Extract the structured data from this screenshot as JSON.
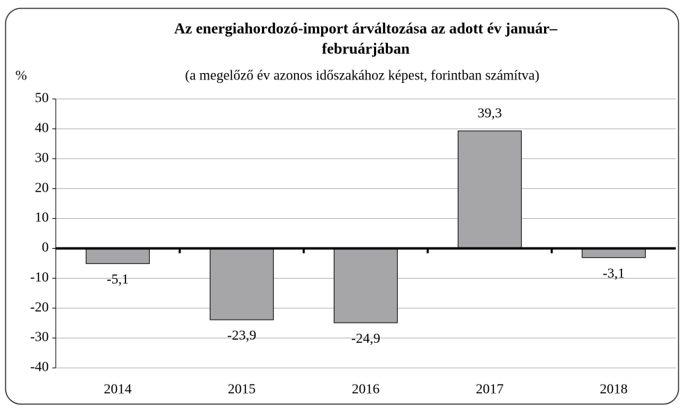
{
  "chart_data": {
    "type": "bar",
    "title": [
      "Az energiahordozó-import árváltozása az adott év január–",
      "februárjában"
    ],
    "subtitle": "(a megelőző év azonos időszakához képest, forintban számítva)",
    "y_label": "%",
    "categories": [
      "2014",
      "2015",
      "2016",
      "2017",
      "2018"
    ],
    "values": [
      -5.1,
      -23.9,
      -24.9,
      39.3,
      -3.1
    ],
    "value_labels": [
      "-5,1",
      "-23,9",
      "-24,9",
      "39,3",
      "-3,1"
    ],
    "color": "#a6a6a8",
    "ylim": [
      -40,
      50
    ],
    "yticks": [
      -40,
      -30,
      -20,
      -10,
      0,
      10,
      20,
      30,
      40,
      50
    ],
    "grid": true
  }
}
